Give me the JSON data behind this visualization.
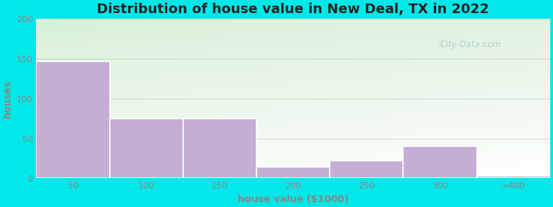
{
  "title": "Distribution of house value in New Deal, TX in 2022",
  "xlabel": "house value ($1000)",
  "ylabel": "houses",
  "bar_labels": [
    "50",
    "100",
    "150",
    "200",
    "250",
    "300",
    ">400"
  ],
  "bar_heights": [
    147,
    75,
    75,
    14,
    22,
    40,
    3
  ],
  "bar_color": "#c4aed4",
  "bar_edgecolor": "#ffffff",
  "bar_linewidth": 1.2,
  "ylim": [
    0,
    200
  ],
  "yticks": [
    0,
    50,
    100,
    150,
    200
  ],
  "background_outer": "#00e8e8",
  "plot_bg_topleft": "#d8f0d8",
  "plot_bg_topright": "#e8f5ee",
  "plot_bg_bottom": "#f5fff8",
  "grid_color": "#c0d8c0",
  "grid_alpha": 0.8,
  "watermark": "City-Data.com",
  "title_fontsize": 14,
  "axis_label_fontsize": 10,
  "tick_fontsize": 9,
  "bar_width": 1.0,
  "tick_color": "#888888",
  "label_color": "#888888"
}
